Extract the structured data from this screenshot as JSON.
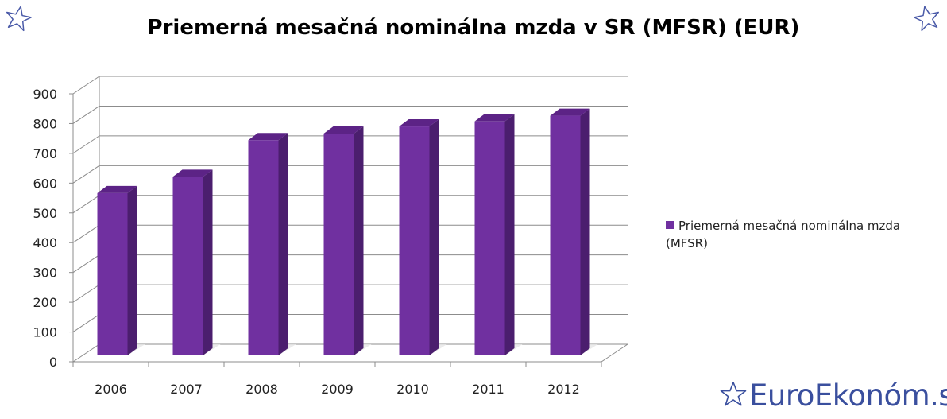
{
  "chart_data": {
    "type": "bar",
    "title": "Priemerná mesačná nominálna mzda v SR (MFSR) (EUR)",
    "categories": [
      "2006",
      "2007",
      "2008",
      "2009",
      "2010",
      "2011",
      "2012"
    ],
    "series": [
      {
        "name": "Priemerná mesačná nominálna mzda (MFSR)",
        "values": [
          545,
          600,
          723,
          745,
          769,
          786,
          805
        ]
      }
    ],
    "ylim": [
      0,
      900
    ],
    "yticks": [
      "0",
      "100",
      "200",
      "300",
      "400",
      "500",
      "600",
      "700",
      "800",
      "900"
    ],
    "grid": true,
    "legend_position": "right",
    "colors": {
      "bar_front": "#7030a0",
      "bar_side": "#4b1e6e",
      "bar_top": "#5c2386",
      "grid": "#8c8c8c"
    }
  },
  "brand": {
    "text": "EuroEkonóm.sk",
    "color": "#3a4f9e"
  }
}
